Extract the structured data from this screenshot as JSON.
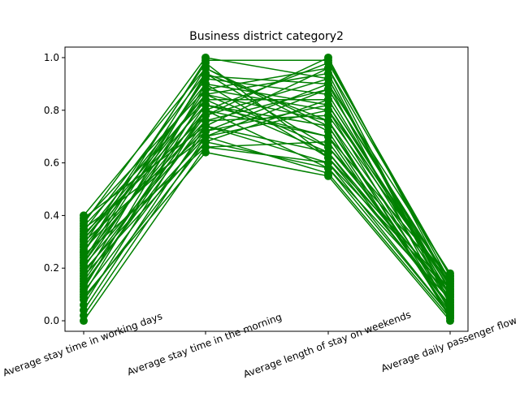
{
  "chart_data": {
    "type": "line",
    "title": "Business district category2",
    "categories": [
      "Average stay time in working days",
      "Average stay time in the morning",
      "Average length of stay on weekends",
      "Average daily passenger flow"
    ],
    "ylim": [
      -0.04,
      1.04
    ],
    "yticks": [
      0.0,
      0.2,
      0.4,
      0.6,
      0.8,
      1.0
    ],
    "ytick_labels": [
      "0.0",
      "0.2",
      "0.4",
      "0.6",
      "0.8",
      "1.0"
    ],
    "grid": false,
    "legend": "none",
    "line_color": "#008000",
    "series": [
      {
        "values": [
          0.0,
          0.66,
          0.6,
          0.02
        ]
      },
      {
        "values": [
          0.02,
          0.7,
          0.56,
          0.01
        ]
      },
      {
        "values": [
          0.04,
          0.74,
          0.64,
          0.05
        ]
      },
      {
        "values": [
          0.06,
          0.8,
          0.7,
          0.03
        ]
      },
      {
        "values": [
          0.08,
          0.68,
          0.58,
          0.08
        ]
      },
      {
        "values": [
          0.1,
          0.86,
          0.76,
          0.1
        ]
      },
      {
        "values": [
          0.11,
          0.72,
          0.82,
          0.12
        ]
      },
      {
        "values": [
          0.12,
          0.9,
          0.62,
          0.06
        ]
      },
      {
        "values": [
          0.14,
          0.76,
          0.88,
          0.14
        ]
      },
      {
        "values": [
          0.15,
          0.82,
          0.74,
          0.04
        ]
      },
      {
        "values": [
          0.16,
          0.94,
          0.66,
          0.15
        ]
      },
      {
        "values": [
          0.18,
          0.78,
          0.92,
          0.09
        ]
      },
      {
        "values": [
          0.19,
          0.7,
          0.8,
          0.16
        ]
      },
      {
        "values": [
          0.2,
          0.88,
          0.96,
          0.07
        ]
      },
      {
        "values": [
          0.21,
          0.74,
          0.6,
          0.11
        ]
      },
      {
        "values": [
          0.22,
          0.84,
          0.84,
          0.13
        ]
      },
      {
        "values": [
          0.23,
          0.96,
          0.72,
          0.02
        ]
      },
      {
        "values": [
          0.24,
          0.8,
          0.98,
          0.17
        ]
      },
      {
        "values": [
          0.25,
          0.66,
          0.68,
          0.05
        ]
      },
      {
        "values": [
          0.26,
          0.92,
          0.86,
          0.1
        ]
      },
      {
        "values": [
          0.27,
          0.76,
          0.78,
          0.14
        ]
      },
      {
        "values": [
          0.28,
          0.86,
          0.94,
          0.06
        ]
      },
      {
        "values": [
          0.29,
          0.98,
          0.62,
          0.12
        ]
      },
      {
        "values": [
          0.3,
          0.72,
          0.9,
          0.03
        ]
      },
      {
        "values": [
          0.31,
          0.82,
          0.7,
          0.16
        ]
      },
      {
        "values": [
          0.32,
          0.9,
          0.82,
          0.08
        ]
      },
      {
        "values": [
          0.33,
          0.78,
          1.0,
          0.13
        ]
      },
      {
        "values": [
          0.34,
          0.94,
          0.76,
          0.01
        ]
      },
      {
        "values": [
          0.35,
          0.7,
          0.88,
          0.15
        ]
      },
      {
        "values": [
          0.36,
          0.84,
          0.64,
          0.09
        ]
      },
      {
        "values": [
          0.37,
          1.0,
          0.92,
          0.11
        ]
      },
      {
        "values": [
          0.38,
          0.88,
          0.8,
          0.04
        ]
      },
      {
        "values": [
          0.39,
          0.74,
          0.96,
          0.17
        ]
      },
      {
        "values": [
          0.4,
          0.96,
          0.74,
          0.07
        ]
      },
      {
        "values": [
          0.13,
          0.8,
          0.58,
          0.02
        ]
      },
      {
        "values": [
          0.17,
          0.68,
          0.84,
          0.12
        ]
      },
      {
        "values": [
          0.26,
          0.99,
          0.99,
          0.15
        ]
      },
      {
        "values": [
          0.09,
          0.64,
          0.55,
          0.0
        ]
      },
      {
        "values": [
          0.31,
          0.86,
          0.66,
          0.1
        ]
      },
      {
        "values": [
          0.22,
          0.93,
          0.9,
          0.18
        ]
      }
    ]
  }
}
